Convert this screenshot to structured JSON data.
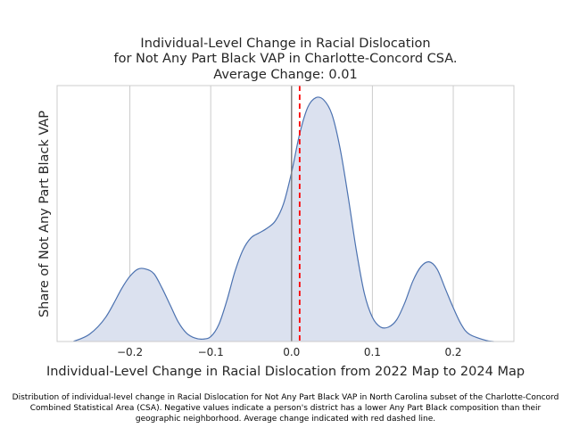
{
  "chart_data": {
    "type": "area",
    "title_lines": [
      "Individual-Level Change in Racial Dislocation",
      "for Not Any Part Black VAP in Charlotte-Concord CSA.",
      "Average Change: 0.01"
    ],
    "xlabel": "Individual-Level Change in Racial Dislocation from 2022 Map to 2024 Map",
    "ylabel": "Share of Not Any Part Black VAP",
    "xlim": [
      -0.29,
      0.275
    ],
    "ylim": [
      0,
      1.06
    ],
    "xticks": [
      -0.2,
      -0.1,
      0.0,
      0.1,
      0.2
    ],
    "xtick_labels": [
      "−0.2",
      "−0.1",
      "0.0",
      "0.1",
      "0.2"
    ],
    "grid": true,
    "zero_line": 0.0,
    "mean_line": 0.01,
    "density": {
      "x": [
        -0.27,
        -0.25,
        -0.23,
        -0.21,
        -0.2,
        -0.19,
        -0.18,
        -0.17,
        -0.16,
        -0.15,
        -0.14,
        -0.13,
        -0.12,
        -0.11,
        -0.1,
        -0.09,
        -0.08,
        -0.07,
        -0.06,
        -0.05,
        -0.04,
        -0.03,
        -0.02,
        -0.01,
        0.0,
        0.01,
        0.02,
        0.03,
        0.04,
        0.05,
        0.06,
        0.07,
        0.08,
        0.09,
        0.1,
        0.11,
        0.12,
        0.13,
        0.14,
        0.15,
        0.16,
        0.17,
        0.18,
        0.19,
        0.2,
        0.21,
        0.22,
        0.24,
        0.25
      ],
      "y": [
        0.0,
        0.03,
        0.1,
        0.22,
        0.27,
        0.3,
        0.3,
        0.28,
        0.22,
        0.15,
        0.08,
        0.035,
        0.015,
        0.01,
        0.02,
        0.07,
        0.17,
        0.29,
        0.38,
        0.43,
        0.45,
        0.47,
        0.5,
        0.57,
        0.7,
        0.86,
        0.97,
        1.01,
        1.0,
        0.94,
        0.8,
        0.6,
        0.38,
        0.2,
        0.1,
        0.06,
        0.06,
        0.09,
        0.16,
        0.25,
        0.31,
        0.33,
        0.3,
        0.22,
        0.14,
        0.07,
        0.03,
        0.005,
        0.0
      ]
    },
    "colors": {
      "line": "#4c72b0",
      "fill": "#dbe1ef",
      "zero_line": "#808080",
      "mean_line": "#ff0000",
      "grid": "#cccccc",
      "frame": "#cccccc"
    }
  },
  "caption": "Distribution of individual-level change in Racial Dislocation for Not Any Part Black VAP in North Carolina subset of the Charlotte-Concord Combined Statistical Area (CSA). Negative values indicate a person's district has a lower Any Part Black composition than their geographic neighborhood. Average change indicated with red dashed line."
}
